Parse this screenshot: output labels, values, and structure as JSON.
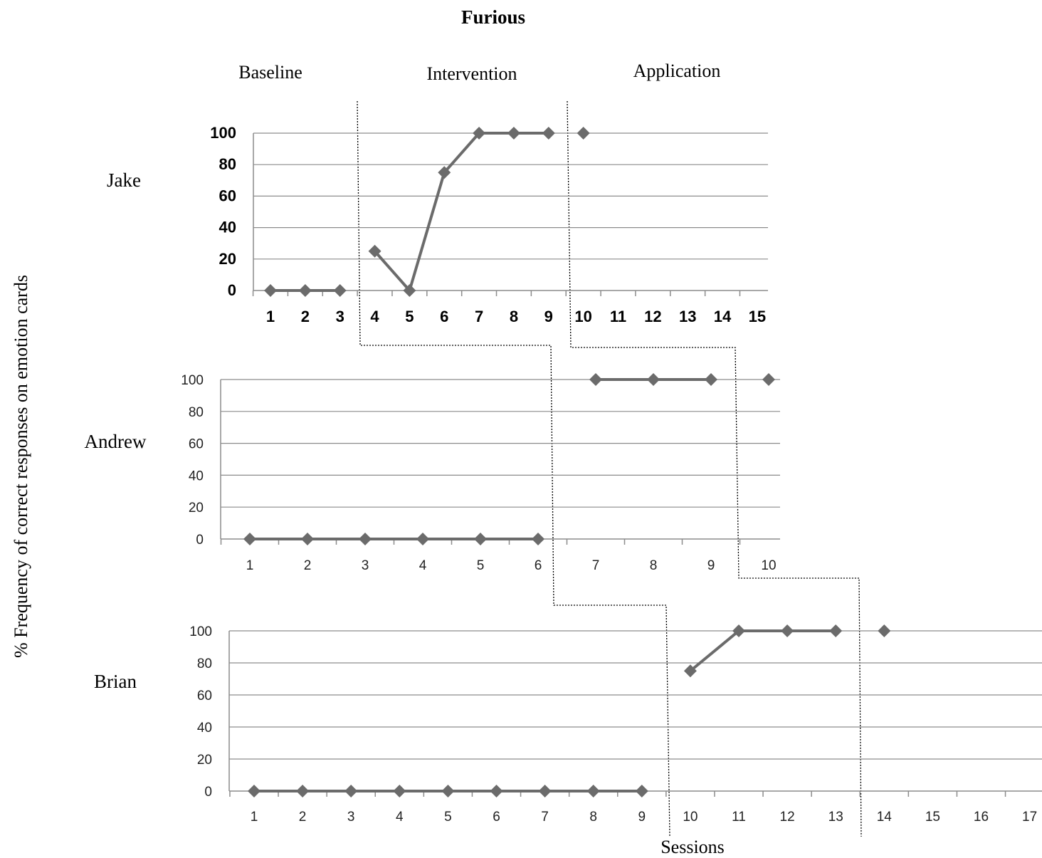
{
  "chart_data": {
    "type": "line",
    "title": "Furious",
    "ylabel": "% Frequency of correct responses on emotion cards",
    "xlabel": "Sessions",
    "phases": [
      "Baseline",
      "Intervention",
      "Application"
    ],
    "ylim": [
      0,
      100
    ],
    "yticks": [
      0,
      20,
      40,
      60,
      80,
      100
    ],
    "grid": true,
    "marker_color": "#6b6b6b",
    "panels": [
      {
        "participant": "Jake",
        "categories": [
          "1",
          "2",
          "3",
          "4",
          "5",
          "6",
          "7",
          "8",
          "9",
          "10",
          "11",
          "12",
          "13",
          "14",
          "15"
        ],
        "segments": [
          {
            "phase": "Baseline",
            "x": [
              1,
              2,
              3
            ],
            "y": [
              0,
              0,
              0
            ]
          },
          {
            "phase": "Intervention",
            "x": [
              4,
              5,
              6,
              7,
              8,
              9
            ],
            "y": [
              25,
              0,
              75,
              100,
              100,
              100
            ]
          },
          {
            "phase": "Application",
            "x": [
              10
            ],
            "y": [
              100
            ]
          }
        ]
      },
      {
        "participant": "Andrew",
        "categories": [
          "1",
          "2",
          "3",
          "4",
          "5",
          "6",
          "7",
          "8",
          "9",
          "10"
        ],
        "segments": [
          {
            "phase": "Baseline",
            "x": [
              1,
              2,
              3,
              4,
              5,
              6
            ],
            "y": [
              0,
              0,
              0,
              0,
              0,
              0
            ]
          },
          {
            "phase": "Intervention",
            "x": [
              7,
              8,
              9
            ],
            "y": [
              100,
              100,
              100
            ]
          },
          {
            "phase": "Application",
            "x": [
              10
            ],
            "y": [
              100
            ]
          }
        ]
      },
      {
        "participant": "Brian",
        "categories": [
          "1",
          "2",
          "3",
          "4",
          "5",
          "6",
          "7",
          "8",
          "9",
          "10",
          "11",
          "12",
          "13",
          "14",
          "15",
          "16",
          "17"
        ],
        "segments": [
          {
            "phase": "Baseline",
            "x": [
              1,
              2,
              3,
              4,
              5,
              6,
              7,
              8,
              9
            ],
            "y": [
              0,
              0,
              0,
              0,
              0,
              0,
              0,
              0,
              0
            ]
          },
          {
            "phase": "Intervention",
            "x": [
              10,
              11,
              12,
              13
            ],
            "y": [
              75,
              100,
              100,
              100
            ]
          },
          {
            "phase": "Application",
            "x": [
              14
            ],
            "y": [
              100
            ]
          }
        ]
      }
    ]
  }
}
